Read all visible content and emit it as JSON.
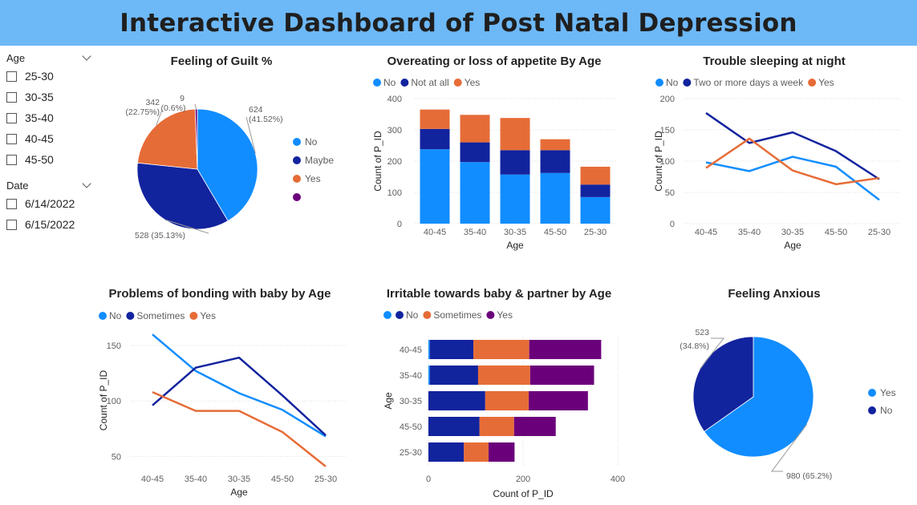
{
  "header": {
    "title": "Interactive Dashboard of Post Natal Depression"
  },
  "colors": {
    "header_bg": "#6db8f7",
    "light_blue": "#118dff",
    "dark_blue": "#12239e",
    "orange": "#e66c37",
    "purple": "#6b007b"
  },
  "slicers": {
    "age": {
      "label": "Age",
      "icon": "chevron-down-icon",
      "options": [
        "25-30",
        "30-35",
        "35-40",
        "40-45",
        "45-50"
      ]
    },
    "date": {
      "label": "Date",
      "icon": "chevron-down-icon",
      "options": [
        "6/14/2022",
        "6/15/2022"
      ]
    }
  },
  "chart_data": [
    {
      "id": "guilt",
      "type": "pie",
      "title": "Feeling of Guilt %",
      "slices": [
        {
          "label": "No",
          "value": 624,
          "pct_label": "(41.52%)",
          "color": "#118dff"
        },
        {
          "label": "Maybe",
          "value": 528,
          "pct_label": "(35.13%)",
          "color": "#12239e"
        },
        {
          "label": "Yes",
          "value": 342,
          "pct_label": "(22.75%)",
          "color": "#e66c37"
        },
        {
          "label": "",
          "value": 9,
          "pct_label": "(0.6%)",
          "color": "#6b007b"
        }
      ]
    },
    {
      "id": "appetite",
      "type": "bar",
      "stacked": true,
      "title": "Overeating or loss of appetite By Age",
      "categories": [
        "40-45",
        "35-40",
        "30-35",
        "45-50",
        "25-30"
      ],
      "series": [
        {
          "name": "No",
          "color": "#118dff",
          "values": [
            238,
            197,
            157,
            162,
            85
          ]
        },
        {
          "name": "Not at all",
          "color": "#12239e",
          "values": [
            65,
            63,
            78,
            73,
            40
          ]
        },
        {
          "name": "Yes",
          "color": "#e66c37",
          "values": [
            62,
            88,
            103,
            35,
            57
          ]
        }
      ],
      "xlabel": "Age",
      "ylabel": "Count of P_ID",
      "ylim": [
        0,
        400
      ],
      "yticks": [
        0,
        100,
        200,
        300,
        400
      ],
      "grid": true,
      "legend": "top-left"
    },
    {
      "id": "sleep",
      "type": "line",
      "title": "Trouble sleeping at night",
      "categories": [
        "40-45",
        "35-40",
        "30-35",
        "45-50",
        "25-30"
      ],
      "series": [
        {
          "name": "No",
          "color": "#118dff",
          "values": [
            98,
            84,
            107,
            91,
            38
          ]
        },
        {
          "name": "Two or more days a week",
          "color": "#12239e",
          "values": [
            177,
            129,
            146,
            116,
            71
          ]
        },
        {
          "name": "Yes",
          "color": "#e66c37",
          "values": [
            89,
            136,
            85,
            63,
            73
          ]
        }
      ],
      "xlabel": "Age",
      "ylabel": "Count of P_ID",
      "ylim": [
        0,
        200
      ],
      "yticks": [
        0,
        50,
        100,
        150,
        200
      ],
      "grid": true,
      "legend": "top-left"
    },
    {
      "id": "bonding",
      "type": "line",
      "title": "Problems of bonding with baby by Age",
      "categories": [
        "40-45",
        "35-40",
        "30-35",
        "45-50",
        "25-30"
      ],
      "series": [
        {
          "name": "No",
          "color": "#118dff",
          "values": [
            160,
            127,
            107,
            92,
            68
          ]
        },
        {
          "name": "Sometimes",
          "color": "#12239e",
          "values": [
            96,
            130,
            139,
            105,
            69
          ]
        },
        {
          "name": "Yes",
          "color": "#e66c37",
          "values": [
            108,
            91,
            91,
            72,
            41
          ]
        }
      ],
      "xlabel": "Age",
      "ylabel": "Count of P_ID",
      "ylim": [
        38,
        163
      ],
      "yticks": [
        50,
        100,
        150
      ],
      "grid": true,
      "legend": "top-left"
    },
    {
      "id": "irritable",
      "type": "bar",
      "orientation": "horizontal",
      "stacked": true,
      "title": "Irritable towards baby & partner by Age",
      "categories": [
        "40-45",
        "35-40",
        "30-35",
        "45-50",
        "25-30"
      ],
      "series": [
        {
          "name": "",
          "color": "#118dff",
          "values": [
            3,
            3,
            0,
            0,
            0
          ]
        },
        {
          "name": "No",
          "color": "#12239e",
          "values": [
            92,
            102,
            120,
            108,
            75
          ]
        },
        {
          "name": "Sometimes",
          "color": "#e66c37",
          "values": [
            118,
            110,
            92,
            73,
            52
          ]
        },
        {
          "name": "Yes",
          "color": "#6b007b",
          "values": [
            152,
            135,
            125,
            88,
            55
          ]
        }
      ],
      "xlabel": "Count of P_ID",
      "ylabel": "Age",
      "xlim": [
        0,
        400
      ],
      "xticks": [
        0,
        200,
        400
      ],
      "grid": true,
      "legend": "top-left"
    },
    {
      "id": "anxious",
      "type": "pie",
      "title": "Feeling Anxious",
      "slices": [
        {
          "label": "Yes",
          "value": 980,
          "pct_label": "(65.2%)",
          "color": "#118dff"
        },
        {
          "label": "No",
          "value": 523,
          "pct_label": "(34.8%)",
          "color": "#12239e"
        }
      ]
    }
  ]
}
